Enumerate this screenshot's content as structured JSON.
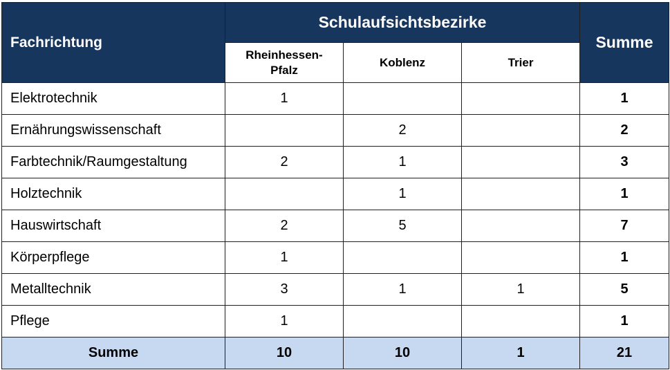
{
  "headers": {
    "fachrichtung": "Fachrichtung",
    "group": "Schulaufsichtsbezirke",
    "summe": "Summe",
    "districts": [
      "Rheinhessen-\nPfalz",
      "Koblenz",
      "Trier"
    ]
  },
  "rows": [
    {
      "name": "Elektrotechnik",
      "values": [
        "1",
        "",
        ""
      ],
      "sum": "1"
    },
    {
      "name": "Ernährungswissenschaft",
      "values": [
        "",
        "2",
        ""
      ],
      "sum": "2"
    },
    {
      "name": "Farbtechnik/Raumgestaltung",
      "values": [
        "2",
        "1",
        ""
      ],
      "sum": "3"
    },
    {
      "name": "Holztechnik",
      "values": [
        "",
        "1",
        ""
      ],
      "sum": "1"
    },
    {
      "name": "Hauswirtschaft",
      "values": [
        "2",
        "5",
        ""
      ],
      "sum": "7"
    },
    {
      "name": "Körperpflege",
      "values": [
        "1",
        "",
        ""
      ],
      "sum": "1"
    },
    {
      "name": "Metalltechnik",
      "values": [
        "3",
        "1",
        "1"
      ],
      "sum": "5"
    },
    {
      "name": "Pflege",
      "values": [
        "1",
        "",
        ""
      ],
      "sum": "1"
    }
  ],
  "total": {
    "label": "Summe",
    "values": [
      "10",
      "10",
      "1"
    ],
    "sum": "21"
  },
  "colors": {
    "header_bg": "#17365d",
    "total_bg": "#c6d9f0"
  }
}
